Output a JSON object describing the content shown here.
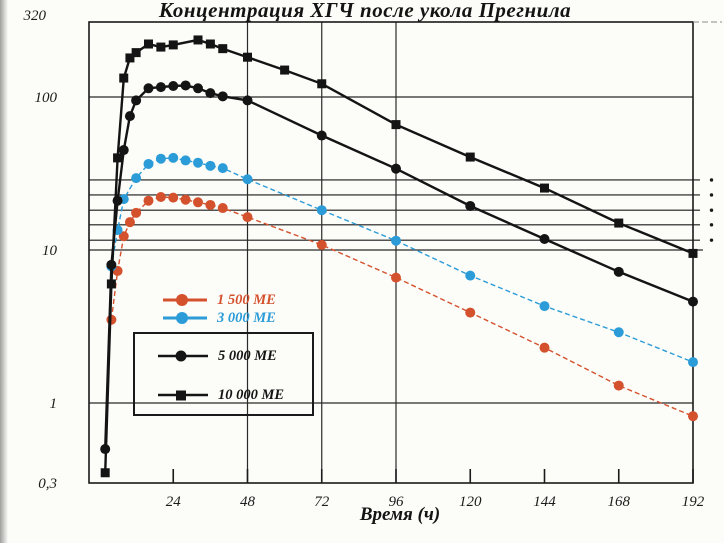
{
  "title": "Концентрация ХГЧ после укола Прегнила",
  "axes": {
    "x": {
      "label": "Время (ч)",
      "min": 0,
      "max": 192,
      "ticks": [
        {
          "value": 24,
          "label": "24"
        },
        {
          "value": 48,
          "label": "48"
        },
        {
          "value": 72,
          "label": "72"
        },
        {
          "value": 96,
          "label": "96"
        },
        {
          "value": 120,
          "label": "120"
        },
        {
          "value": 144,
          "label": "144"
        },
        {
          "value": 168,
          "label": "168"
        },
        {
          "value": 192,
          "label": "192"
        }
      ]
    },
    "y": {
      "scale": "log",
      "min": 0.3,
      "max": 320,
      "ticks": [
        {
          "value": 320,
          "label": "320"
        },
        {
          "value": 100,
          "label": "100"
        },
        {
          "value": 10,
          "label": "10"
        },
        {
          "value": 1,
          "label": "1"
        },
        {
          "value": 0.3,
          "label": "0,3"
        }
      ]
    }
  },
  "legend": {
    "entries": [
      {
        "label": "1 500 МЕ",
        "marker": "circle",
        "color": "#d4512e"
      },
      {
        "label": "3 000 МЕ",
        "marker": "circle",
        "color": "#2b9cd8"
      },
      {
        "label": "5 000 МЕ",
        "marker": "circle",
        "color": "#141414"
      },
      {
        "label": "10 000 МЕ",
        "marker": "square",
        "color": "#141414"
      }
    ]
  },
  "chart_data": {
    "type": "line",
    "title": "Концентрация ХГЧ после укола Прегнила",
    "xlabel": "Время (ч)",
    "ylabel": "",
    "x_scale": "linear",
    "y_scale": "log",
    "xlim": [
      0,
      192
    ],
    "ylim": [
      0.3,
      320
    ],
    "x_ticks": [
      24,
      48,
      72,
      96,
      120,
      144,
      168,
      192
    ],
    "x_gridlines": [
      48,
      72,
      96
    ],
    "y_gridlines": [
      100,
      10,
      1
    ],
    "minor_reference_lines": [
      28.7,
      22.9,
      18.2,
      14.6,
      11.6
    ],
    "legend_position": "inside-left-middle",
    "series": [
      {
        "name": "1 500 МЕ",
        "color": "#d4512e",
        "marker": "circle",
        "line": "dashed",
        "x": [
          4,
          6,
          8,
          10,
          12,
          16,
          20,
          24,
          28,
          32,
          36,
          40,
          48,
          72,
          96,
          120,
          144,
          168,
          192
        ],
        "y": [
          3.5,
          7.3,
          12.3,
          15.2,
          17.5,
          21,
          22.2,
          22,
          21.3,
          20.5,
          19.7,
          18.8,
          16.4,
          10.8,
          6.6,
          3.9,
          2.3,
          1.3,
          0.82
        ]
      },
      {
        "name": "3 000 МЕ",
        "color": "#2b9cd8",
        "marker": "circle",
        "line": "dashed",
        "x": [
          4,
          6,
          8,
          12,
          16,
          20,
          24,
          28,
          32,
          36,
          40,
          48,
          72,
          96,
          120,
          144,
          168,
          192
        ],
        "y": [
          7.8,
          13.5,
          21.5,
          29.5,
          36.5,
          39.5,
          40,
          38.5,
          37.2,
          35.5,
          34.3,
          29,
          18.2,
          11.5,
          6.8,
          4.3,
          2.9,
          1.85
        ]
      },
      {
        "name": "5 000 МЕ",
        "color": "#141414",
        "marker": "circle",
        "line": "solid",
        "x": [
          2,
          4,
          6,
          8,
          10,
          12,
          16,
          20,
          24,
          28,
          32,
          36,
          40,
          48,
          72,
          96,
          120,
          144,
          168,
          192
        ],
        "y": [
          0.5,
          8,
          21,
          45,
          75,
          95,
          114,
          116,
          118,
          119,
          114,
          106,
          101,
          95,
          56,
          34,
          19.4,
          11.8,
          7.2,
          4.6
        ]
      },
      {
        "name": "10 000 МЕ",
        "color": "#141414",
        "marker": "square",
        "line": "solid",
        "x": [
          2,
          4,
          6,
          8,
          10,
          12,
          16,
          20,
          24,
          32,
          36,
          40,
          48,
          60,
          72,
          96,
          120,
          144,
          168,
          192
        ],
        "y": [
          0.35,
          6,
          40,
          133,
          180,
          195,
          222,
          212,
          219,
          236,
          222,
          207,
          182,
          150,
          122,
          66,
          40.5,
          25.4,
          15,
          9.5
        ]
      }
    ]
  }
}
